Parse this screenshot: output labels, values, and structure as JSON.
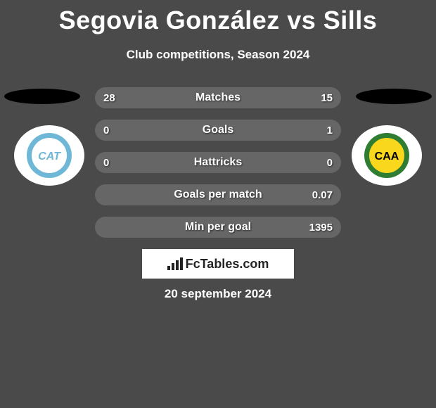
{
  "title": "Segovia González vs Sills",
  "subtitle": "Club competitions, Season 2024",
  "date": "20 september 2024",
  "watermark": "FcTables.com",
  "row_bg_color": "#666666",
  "rows": [
    {
      "label": "Matches",
      "left": "28",
      "right": "15"
    },
    {
      "label": "Goals",
      "left": "0",
      "right": "1"
    },
    {
      "label": "Hattricks",
      "left": "0",
      "right": "0"
    },
    {
      "label": "Goals per match",
      "left": "",
      "right": "0.07"
    },
    {
      "label": "Min per goal",
      "left": "",
      "right": "1395"
    }
  ],
  "badges": {
    "left": {
      "bg": "#ffffff",
      "text": "CAT",
      "ring": "#6fb7d6",
      "inner": "#ffffff",
      "textcolor": "#6fb7d6"
    },
    "right": {
      "bg": "#ffffff",
      "text": "CAA",
      "ring": "#2e7d32",
      "inner": "#f9d71c",
      "textcolor": "#000000"
    }
  },
  "colors": {
    "page_bg": "#4a4a4a",
    "text": "#ffffff",
    "shadow": "#000000"
  }
}
